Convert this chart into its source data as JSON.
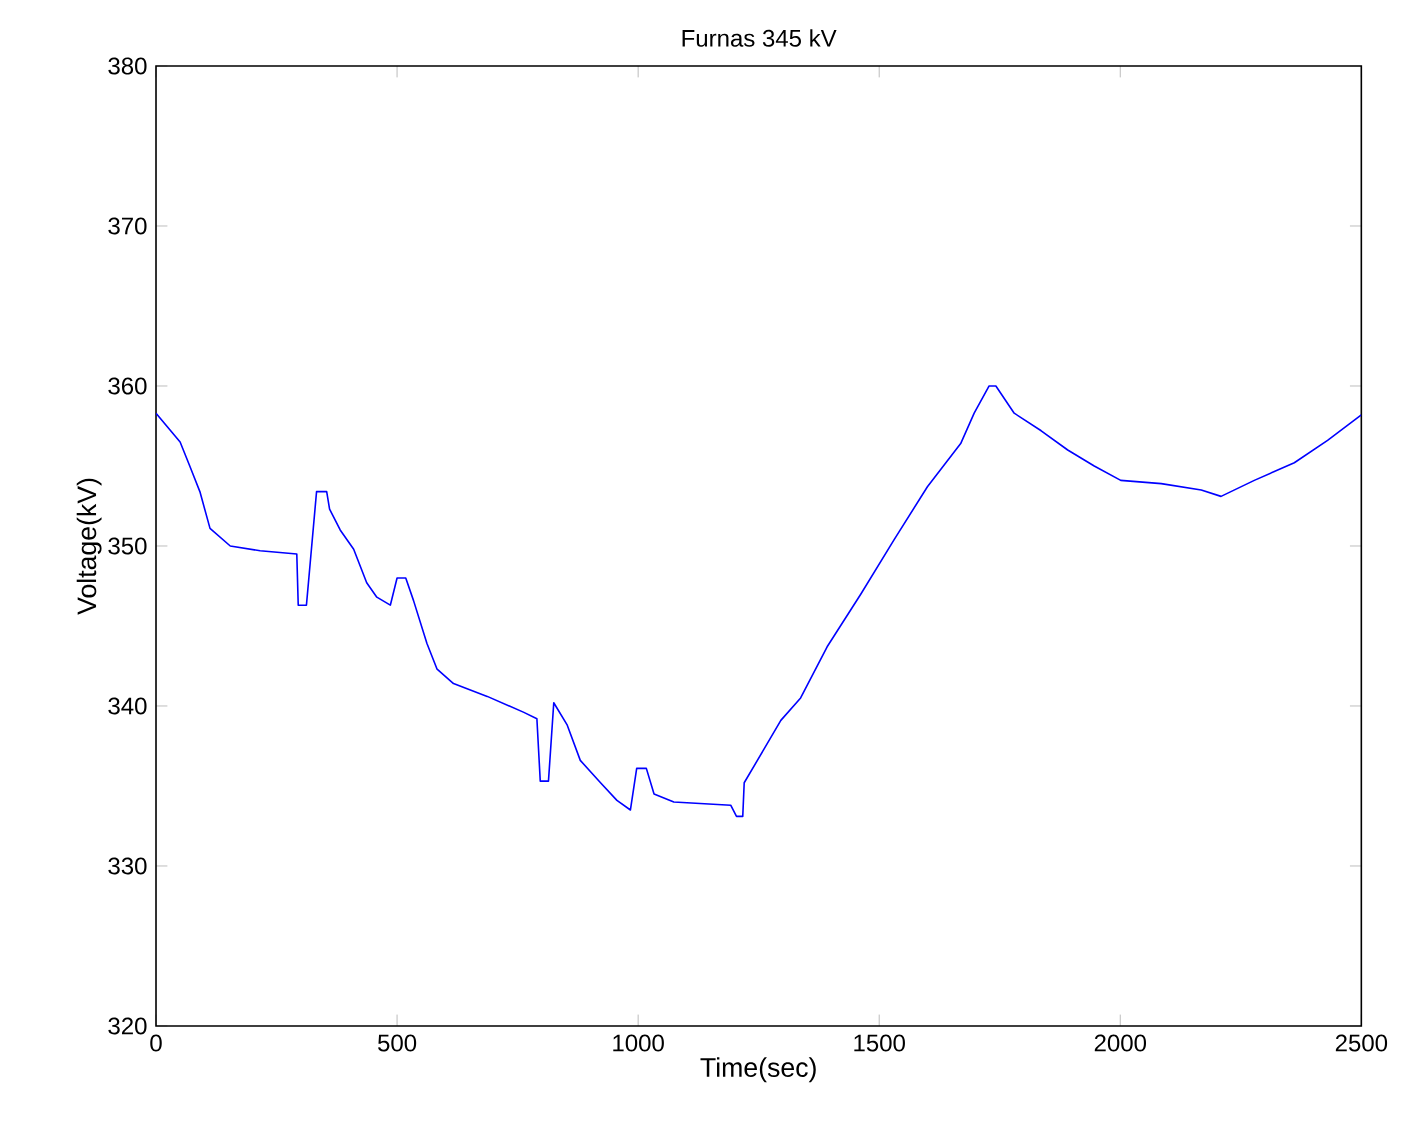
{
  "chart_data": {
    "type": "line",
    "title": "Furnas 345 kV",
    "xlabel": "Time(sec)",
    "ylabel": "Voltage(kV)",
    "x": [
      0,
      50,
      70,
      91,
      112,
      154,
      216,
      292,
      295,
      312,
      320,
      333,
      354,
      360,
      382,
      410,
      437,
      458,
      486,
      500,
      518,
      534,
      562,
      583,
      617,
      687,
      763,
      790,
      797,
      814,
      825,
      853,
      880,
      922,
      956,
      984,
      997,
      1017,
      1033,
      1074,
      1192,
      1204,
      1217,
      1220,
      1261,
      1296,
      1337,
      1392,
      1462,
      1531,
      1600,
      1669,
      1697,
      1728,
      1742,
      1780,
      1836,
      1891,
      1946,
      2001,
      2085,
      2168,
      2209,
      2278,
      2361,
      2430,
      2500
    ],
    "series": [
      {
        "color": "#0000ff",
        "values": [
          358.3,
          356.5,
          355,
          353.4,
          351.1,
          350,
          349.7,
          349.5,
          346.3,
          346.3,
          349,
          353.4,
          353.4,
          352.3,
          351,
          349.8,
          347.7,
          346.8,
          346.3,
          348,
          348,
          346.6,
          343.9,
          342.3,
          341.4,
          340.6,
          339.6,
          339.2,
          335.3,
          335.3,
          340.2,
          338.8,
          336.6,
          335.2,
          334.1,
          333.5,
          336.1,
          336.1,
          334.5,
          334,
          333.8,
          333.1,
          333.1,
          335.2,
          337.3,
          339.1,
          340.5,
          343.7,
          347,
          350.4,
          353.7,
          356.4,
          358.3,
          360,
          360,
          358.3,
          357.2,
          356,
          355,
          354.1,
          353.9,
          353.5,
          353.1,
          354.1,
          355.2,
          356.6,
          358.2
        ]
      }
    ],
    "xlim": [
      0,
      2500
    ],
    "ylim": [
      320,
      380
    ],
    "xticks": [
      0,
      500,
      1000,
      1500,
      2000,
      2500
    ],
    "yticks": [
      320,
      330,
      340,
      350,
      360,
      370,
      380
    ],
    "line_style": "solid",
    "marker": "none"
  }
}
